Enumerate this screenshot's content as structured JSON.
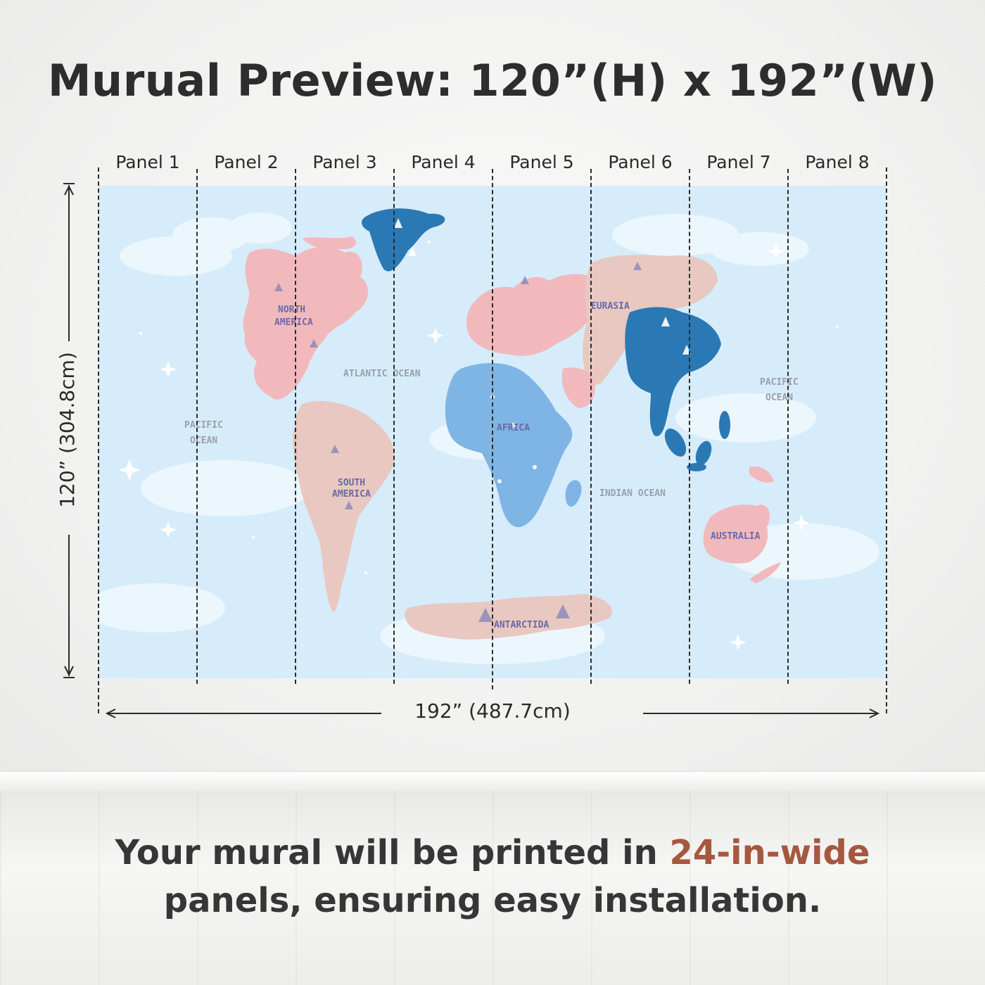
{
  "title": "Murual Preview: 120”(H) x 192”(W)",
  "panels": [
    "Panel 1",
    "Panel 2",
    "Panel 3",
    "Panel 4",
    "Panel 5",
    "Panel 6",
    "Panel 7",
    "Panel 8"
  ],
  "dimensions": {
    "height_label": "120” (304.8cm)",
    "width_label": "192” (487.7cm)"
  },
  "map_labels": {
    "north_america": [
      "NORTH",
      "AMERICA"
    ],
    "south_america": [
      "SOUTH",
      "AMERICA"
    ],
    "atlantic": "ATLANTIC OCEAN",
    "pacific_left": [
      "PACIFIC",
      "OCEAN"
    ],
    "pacific_right": [
      "PACIFIC",
      "OCEAN"
    ],
    "africa": "AFRICA",
    "eurasia": "EURASIA",
    "indian": "INDIAN OCEAN",
    "australia": "AUSTRALIA",
    "antarctida": "ANTARCTIDA"
  },
  "tagline": {
    "part1": "Your mural will be printed in ",
    "highlight": "24-in-wide",
    "part2": "panels, ensuring easy installation."
  },
  "colors": {
    "accent": "#a5583f",
    "sky": "#d6ecfb",
    "pink_land": "#f2b9bd",
    "beige_land": "#e8c8c0",
    "blue_land": "#2a79b4",
    "light_blue_land": "#7fb5e4"
  }
}
